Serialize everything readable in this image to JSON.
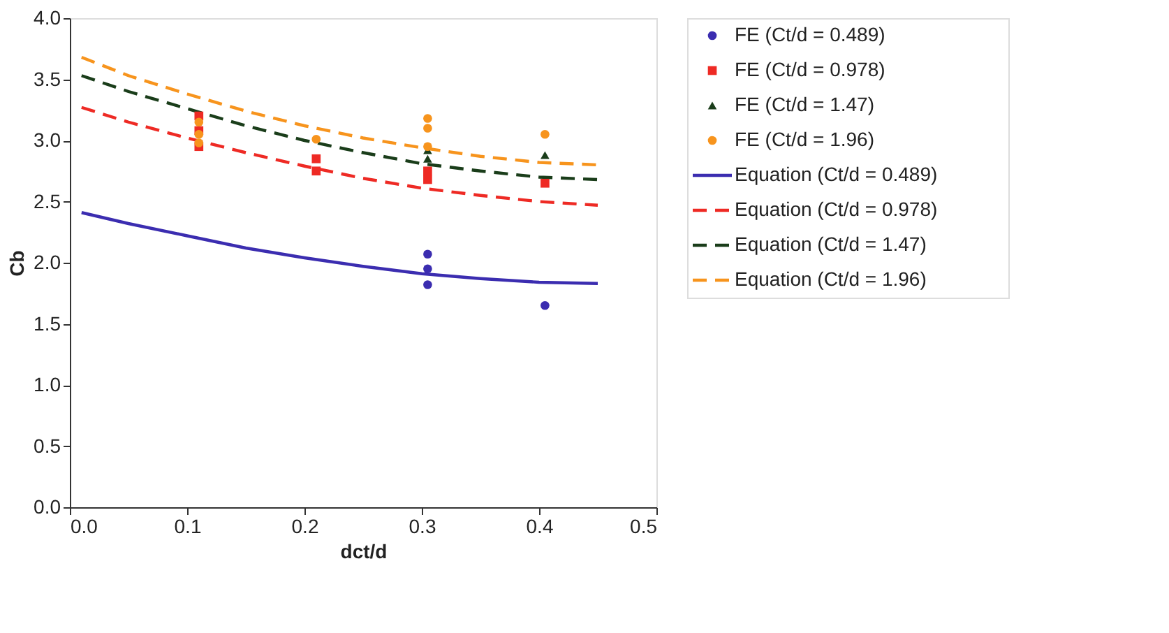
{
  "chart_data": {
    "type": "scatter",
    "xlabel": "dct/d",
    "ylabel": "Cb",
    "xlim": [
      0,
      0.5
    ],
    "ylim": [
      0,
      4
    ],
    "xticks": [
      {
        "value": 0,
        "label": "0.0"
      },
      {
        "value": 0.1,
        "label": "0.1"
      },
      {
        "value": 0.2,
        "label": "0.2"
      },
      {
        "value": 0.3,
        "label": "0.3"
      },
      {
        "value": 0.4,
        "label": "0.4"
      },
      {
        "value": 0.5,
        "label": "0.5"
      }
    ],
    "yticks": [
      {
        "value": 0,
        "label": "0.0"
      },
      {
        "value": 0.5,
        "label": "0.5"
      },
      {
        "value": 1,
        "label": "1.0"
      },
      {
        "value": 1.5,
        "label": "1.5"
      },
      {
        "value": 2,
        "label": "2.0"
      },
      {
        "value": 2.5,
        "label": "2.5"
      },
      {
        "value": 3,
        "label": "3.0"
      },
      {
        "value": 3.5,
        "label": "3.5"
      },
      {
        "value": 4,
        "label": "4.0"
      }
    ],
    "grid": false,
    "legend": "right",
    "series": [
      {
        "name": "FE (Ct/d = 0.489)",
        "type": "scatter",
        "marker": "circle",
        "color": "#3b2db0",
        "x": [
          0.305,
          0.305,
          0.305,
          0.405
        ],
        "values": [
          2.07,
          1.95,
          1.82,
          1.65
        ]
      },
      {
        "name": "FE (Ct/d = 0.978)",
        "type": "scatter",
        "marker": "square",
        "color": "#ee2a24",
        "x": [
          0.11,
          0.11,
          0.11,
          0.21,
          0.21,
          0.305,
          0.305,
          0.405
        ],
        "values": [
          3.2,
          3.08,
          2.95,
          2.85,
          2.75,
          2.75,
          2.68,
          2.65
        ]
      },
      {
        "name": "FE (Ct/d = 1.47)",
        "type": "scatter",
        "marker": "triangle",
        "color": "#1a3d1a",
        "x": [
          0.305,
          0.305,
          0.405
        ],
        "values": [
          2.92,
          2.85,
          2.88
        ]
      },
      {
        "name": "FE (Ct/d = 1.96)",
        "type": "scatter",
        "marker": "circle",
        "color": "#f7941d",
        "x": [
          0.11,
          0.11,
          0.11,
          0.21,
          0.305,
          0.305,
          0.305,
          0.405
        ],
        "values": [
          3.15,
          3.05,
          2.98,
          3.01,
          3.18,
          3.1,
          2.95,
          3.05
        ]
      },
      {
        "name": "Equation (Ct/d = 0.489)",
        "type": "line",
        "line_style": "solid",
        "color": "#3b2db0",
        "x": [
          0.01,
          0.05,
          0.1,
          0.15,
          0.2,
          0.25,
          0.3,
          0.35,
          0.4,
          0.45
        ],
        "values": [
          2.41,
          2.32,
          2.22,
          2.12,
          2.04,
          1.97,
          1.91,
          1.87,
          1.84,
          1.83
        ]
      },
      {
        "name": "Equation (Ct/d = 0.978)",
        "type": "line",
        "line_style": "dashed",
        "color": "#ee2a24",
        "x": [
          0.01,
          0.05,
          0.1,
          0.15,
          0.2,
          0.25,
          0.3,
          0.35,
          0.4,
          0.45
        ],
        "values": [
          3.27,
          3.15,
          3.02,
          2.9,
          2.79,
          2.69,
          2.61,
          2.55,
          2.5,
          2.47
        ]
      },
      {
        "name": "Equation (Ct/d = 1.47)",
        "type": "line",
        "line_style": "dashed",
        "color": "#1a3d1a",
        "x": [
          0.01,
          0.05,
          0.1,
          0.15,
          0.2,
          0.25,
          0.3,
          0.35,
          0.4,
          0.45
        ],
        "values": [
          3.53,
          3.4,
          3.26,
          3.12,
          3.0,
          2.9,
          2.81,
          2.75,
          2.7,
          2.68
        ]
      },
      {
        "name": "Equation (Ct/d = 1.96)",
        "type": "line",
        "line_style": "dashed",
        "color": "#f7941d",
        "x": [
          0.01,
          0.05,
          0.1,
          0.15,
          0.2,
          0.25,
          0.3,
          0.35,
          0.4,
          0.45
        ],
        "values": [
          3.68,
          3.53,
          3.38,
          3.24,
          3.12,
          3.02,
          2.94,
          2.87,
          2.82,
          2.8
        ]
      }
    ]
  }
}
